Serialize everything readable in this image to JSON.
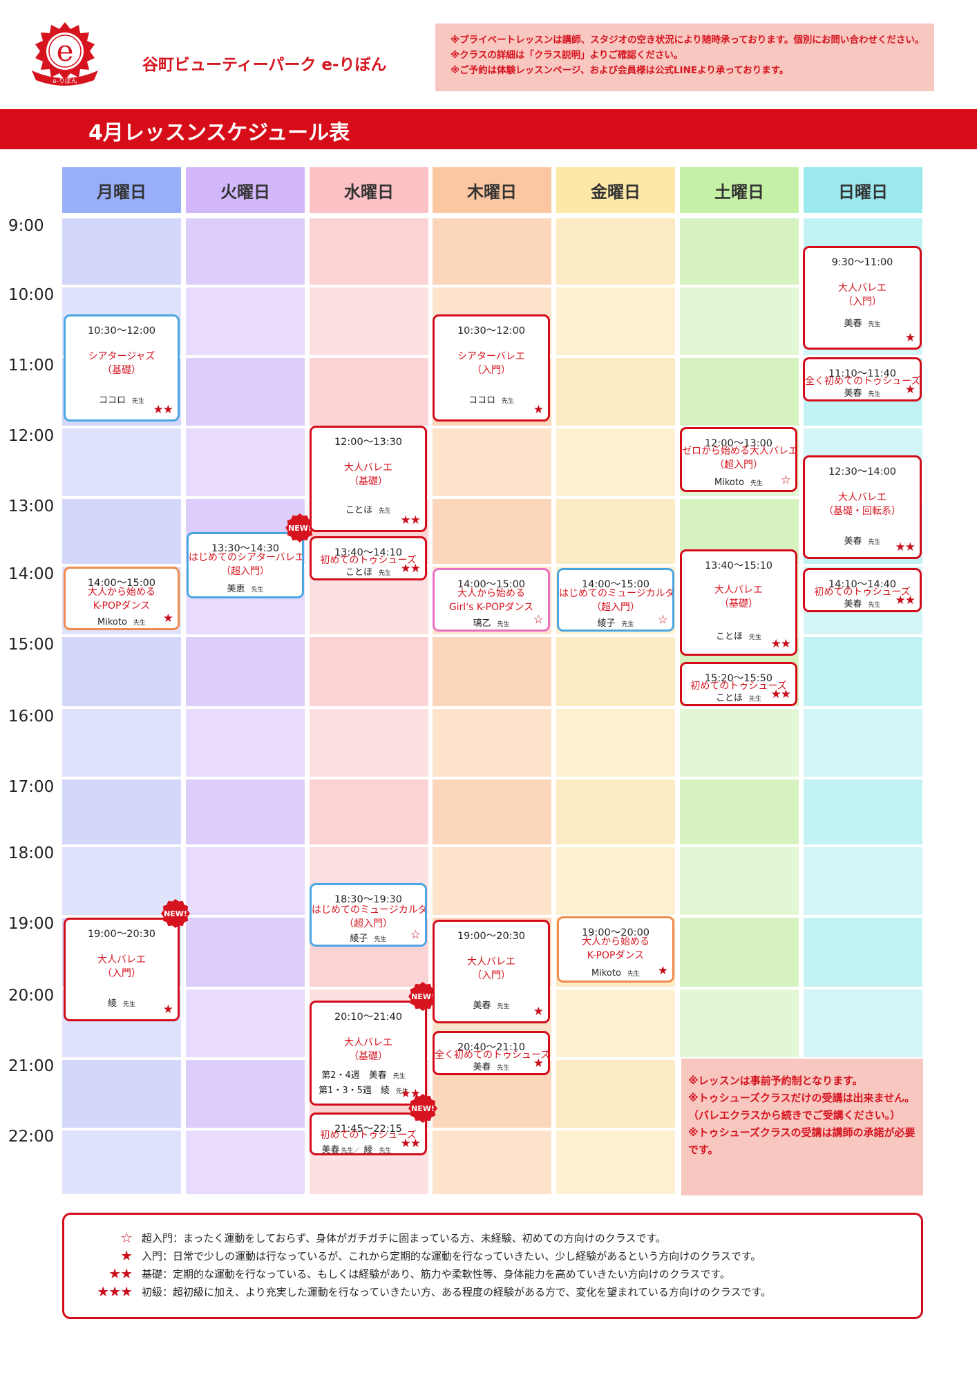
{
  "header": {
    "brand": "谷町ビューティーパーク e-りぼん",
    "notices": [
      "※プライベートレッスンは講師、スタジオの空き状況により随時承っております。個別にお問い合わせください。",
      "※クラスの詳細は「クラス説明」よりご確認ください。",
      "※ご予約は体験レッスンページ、および会員様は公式LINEより承っております。"
    ],
    "banner": "4月レッスンスケジュール表"
  },
  "days": [
    "月曜日",
    "火曜日",
    "水曜日",
    "木曜日",
    "金曜日",
    "土曜日",
    "日曜日"
  ],
  "day_colors": {
    "header": [
      "#98aef8",
      "#d2b7fb",
      "#fbc1c4",
      "#fcc6a1",
      "#fde8a8",
      "#c4f1a5",
      "#9ce8ef"
    ],
    "light": [
      "#dfe2fb",
      "#e8dbfc",
      "#fde0e1",
      "#fde2cc",
      "#fdf1d2",
      "#e4f7d4",
      "#d4f6f8"
    ],
    "dark": [
      "#d3d7fa",
      "#ddcdfb",
      "#fcd3d5",
      "#fcd6bb",
      "#fcebc3",
      "#d6f2c1",
      "#c3f2f5"
    ]
  },
  "times": [
    "9:00",
    "10:00",
    "11:00",
    "12:00",
    "13:00",
    "14:00",
    "15:00",
    "16:00",
    "17:00",
    "18:00",
    "19:00",
    "20:00",
    "21:00",
    "22:00"
  ],
  "classes": [
    {
      "time": "10:30〜12:00",
      "name": [
        "シアタージャズ",
        "（基礎）"
      ],
      "teacher": "ココロ",
      "stars": "★★",
      "color": "blue"
    },
    {
      "time": "14:00〜15:00",
      "name": [
        "大人から始める",
        "K-POPダンス"
      ],
      "teacher": "Mikoto",
      "stars": "★",
      "color": "orange"
    },
    {
      "time": "19:00〜20:30",
      "name": [
        "大人バレエ",
        "（入門）"
      ],
      "teacher": "綾",
      "stars": "★",
      "color": "red",
      "new": true
    },
    {
      "time": "13:30〜14:30",
      "name": [
        "はじめてのシアターバレエ",
        "（超入門）"
      ],
      "teacher": "美恵",
      "stars": "",
      "color": "blue",
      "new": true
    },
    {
      "time": "12:00〜13:30",
      "name": [
        "大人バレエ",
        "（基礎）"
      ],
      "teacher": "ことほ",
      "stars": "★★",
      "color": "red"
    },
    {
      "time": "13:40〜14:10",
      "name": [
        "初めてのトゥシューズ"
      ],
      "teacher": "ことほ",
      "stars": "★★",
      "color": "red"
    },
    {
      "time": "18:30〜19:30",
      "name": [
        "はじめてのミュージカルダンス",
        "（超入門）"
      ],
      "teacher": "綾子",
      "stars": "☆",
      "color": "blue"
    },
    {
      "time": "20:10〜21:40",
      "name": [
        "大人バレエ",
        "（基礎）"
      ],
      "teacher_lines": [
        {
          "label": "第2・4週　美春",
          "s": "先生"
        },
        {
          "label": "第1・3・5週　綾",
          "s": "先生"
        }
      ],
      "stars": "★★",
      "color": "red",
      "new": true
    },
    {
      "time": "21:45〜22:15",
      "name": [
        "初めてのトゥシューズ"
      ],
      "teacher_combo": "美春",
      "teacher_combo_s": "先生／",
      "teacher_combo2": "綾",
      "stars": "★★",
      "color": "red",
      "new": true
    },
    {
      "time": "10:30〜12:00",
      "name": [
        "シアターバレエ",
        "（入門）"
      ],
      "teacher": "ココロ",
      "stars": "★",
      "color": "red"
    },
    {
      "time": "14:00〜15:00",
      "name": [
        "大人から始める",
        "Girl's K-POPダンス"
      ],
      "teacher": "璃乙",
      "stars": "☆",
      "color": "pink"
    },
    {
      "time": "19:00〜20:30",
      "name": [
        "大人バレエ",
        "（入門）"
      ],
      "teacher": "美春",
      "stars": "★",
      "color": "red"
    },
    {
      "time": "20:40〜21:10",
      "name": [
        "全く初めてのトゥシューズ"
      ],
      "teacher": "美春",
      "stars": "★",
      "color": "red"
    },
    {
      "time": "14:00〜15:00",
      "name": [
        "はじめてのミュージカルダンス",
        "（超入門）"
      ],
      "teacher": "綾子",
      "stars": "☆",
      "color": "blue"
    },
    {
      "time": "19:00〜20:00",
      "name": [
        "大人から始める",
        "K-POPダンス"
      ],
      "teacher": "Mikoto",
      "stars": "★",
      "color": "orange"
    },
    {
      "time": "12:00〜13:00",
      "name": [
        "ゼロから始める大人バレエ",
        "（超入門）"
      ],
      "teacher": "Mikoto",
      "stars": "☆",
      "color": "red"
    },
    {
      "time": "13:40〜15:10",
      "name": [
        "大人バレエ",
        "（基礎）"
      ],
      "teacher": "ことほ",
      "stars": "★★",
      "color": "red"
    },
    {
      "time": "15:20〜15:50",
      "name": [
        "初めてのトゥシューズ"
      ],
      "teacher": "ことほ",
      "stars": "★★",
      "color": "red"
    },
    {
      "time": "9:30〜11:00",
      "name": [
        "大人バレエ",
        "（入門）"
      ],
      "teacher": "美春",
      "stars": "★",
      "color": "red"
    },
    {
      "time": "11:10〜11:40",
      "name": [
        "全く初めてのトゥシューズ"
      ],
      "teacher": "美春",
      "stars": "★",
      "color": "red"
    },
    {
      "time": "12:30〜14:00",
      "name": [
        "大人バレエ",
        "（基礎・回転系）"
      ],
      "teacher": "美春",
      "stars": "★★",
      "color": "red"
    },
    {
      "time": "14:10〜14:40",
      "name": [
        "初めてのトゥシューズ"
      ],
      "teacher": "美春",
      "stars": "★★",
      "color": "red"
    }
  ],
  "teacher_suffix": "先生",
  "new_label": "NEW!",
  "rules": [
    "※レッスンは事前予約制となります。",
    "※トゥシューズクラスだけの受講は出来ません。（バレエクラスから続きでご受講ください。）",
    "※トゥシューズクラスの受講は講師の承諾が必要です。"
  ],
  "legend": [
    {
      "stars": "☆",
      "text": "超入門：まったく運動をしておらず、身体がガチガチに固まっている方、未経験、初めての方向けのクラスです。"
    },
    {
      "stars": "★",
      "text": "入門：日常で少しの運動は行なっているが、これから定期的な運動を行なっていきたい、少し経験があるという方向けのクラスです。"
    },
    {
      "stars": "★★",
      "text": "基礎：定期的な運動を行なっている、もしくは経験があり、筋力や柔軟性等、身体能力を高めていきたい方向けのクラスです。"
    },
    {
      "stars": "★★★",
      "text": "初級：超初級に加え、より充実した運動を行なっていきたい方、ある程度の経験がある方で、変化を望まれている方向けのクラスです。"
    }
  ],
  "logo": {
    "letter": "e",
    "ribbon": "e-りぼん"
  }
}
